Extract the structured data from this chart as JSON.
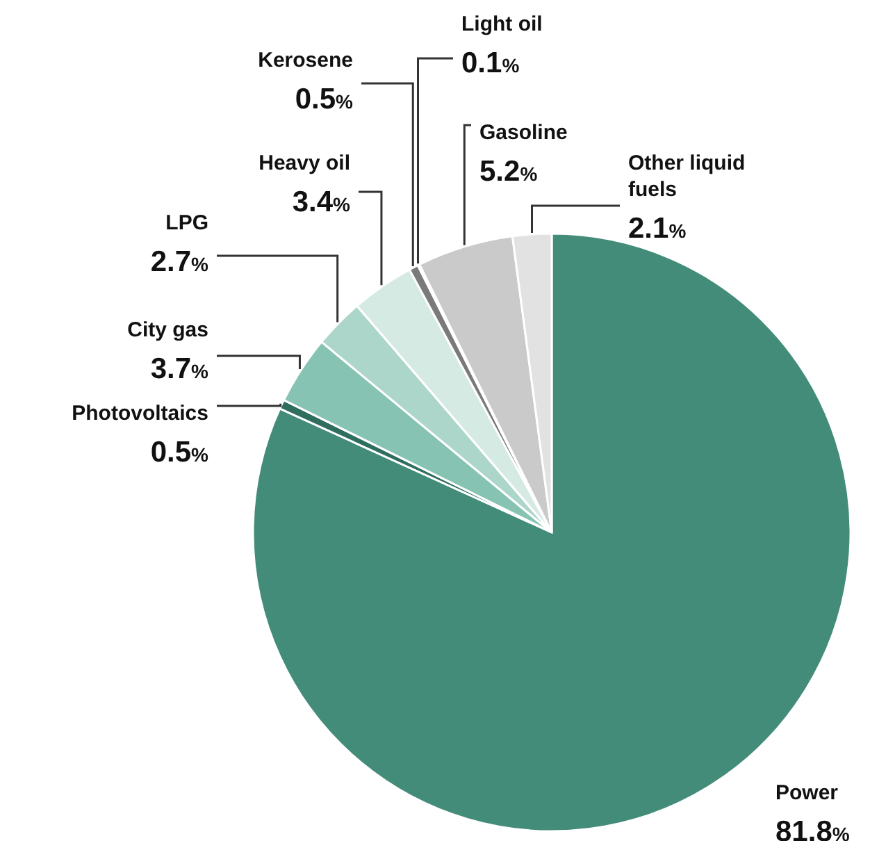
{
  "chart_data": {
    "type": "pie",
    "categories": [
      "Power",
      "Photovoltaics",
      "City gas",
      "LPG",
      "Heavy oil",
      "Kerosene",
      "Light oil",
      "Gasoline",
      "Other liquid fuels"
    ],
    "values": [
      81.8,
      0.5,
      3.7,
      2.7,
      3.4,
      0.5,
      0.1,
      5.2,
      2.1
    ],
    "colors": [
      "#448c7a",
      "#2f6e5e",
      "#86c3b2",
      "#acd6ca",
      "#d6eae4",
      "#7a7a7a",
      "#e6e6e6",
      "#cacaca",
      "#e2e2e2"
    ],
    "value_labels": [
      "81.8%",
      "0.5%",
      "3.7%",
      "2.7%",
      "3.4%",
      "0.5%",
      "0.1%",
      "5.2%",
      "2.1%"
    ]
  }
}
